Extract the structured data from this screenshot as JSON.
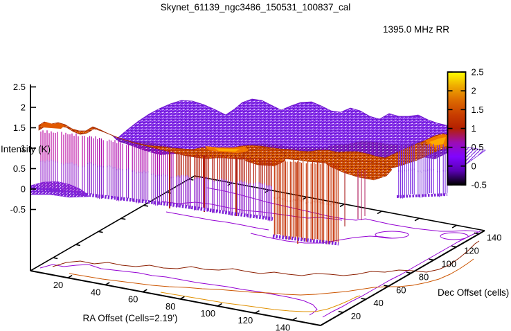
{
  "chart_data": {
    "type": "surface3d_with_contours",
    "title": "Skynet_61139_ngc3486_150531_100837_cal",
    "legend": {
      "label": "1395.0 MHz RR"
    },
    "x_axis": {
      "label": "RA Offset (Cells=2.19')",
      "ticks": [
        20,
        40,
        60,
        80,
        100,
        120,
        140
      ],
      "range": [
        0,
        155
      ]
    },
    "y_axis": {
      "label": "Dec Offset (cells)",
      "ticks": [
        20,
        40,
        60,
        80,
        100,
        120,
        140
      ],
      "range": [
        0,
        145
      ]
    },
    "z_axis": {
      "label": "Intensity (K)",
      "ticks": [
        -0.5,
        0,
        0.5,
        1,
        1.5,
        2,
        2.5
      ],
      "range": [
        -0.5,
        2.5
      ]
    },
    "colorbar": {
      "min": -0.5,
      "max": 2.5,
      "ticks": [
        -0.5,
        0,
        0.5,
        1,
        1.5,
        2,
        2.5
      ],
      "palette": [
        {
          "pos": 0.0,
          "color": "#000000"
        },
        {
          "pos": 0.125,
          "color": "#5A00B4"
        },
        {
          "pos": 0.25,
          "color": "#8004FF"
        },
        {
          "pos": 0.375,
          "color": "#9C0DB4"
        },
        {
          "pos": 0.5,
          "color": "#B42000"
        },
        {
          "pos": 0.625,
          "color": "#C93E00"
        },
        {
          "pos": 0.75,
          "color": "#DD6B00"
        },
        {
          "pos": 0.875,
          "color": "#EFAB00"
        },
        {
          "pos": 1.0,
          "color": "#FFFF00"
        }
      ]
    },
    "surface": {
      "description": "Calibrated radio map: flat violet plateau (~0.5-1 K) at high Dec, orange rim (~1.4-1.7 K) along mid Dec, front curtain dropping to ~0 K at low Dec, deep red trench (below -0.5 K) near RA 90-110",
      "plateau_level_K": 0.8,
      "rim_level_K": 1.5,
      "floor_level_K": 0.0,
      "trench_min_K": -0.5
    },
    "contour_colors": [
      "#9400d3",
      "#8b1e00",
      "#cc5500",
      "#e09000"
    ],
    "accent_colors": {
      "violet": "#7c1fe8",
      "magenta": "#b8009e",
      "crimson": "#b42012",
      "red": "#c22e00",
      "orange": "#ff8800"
    }
  }
}
